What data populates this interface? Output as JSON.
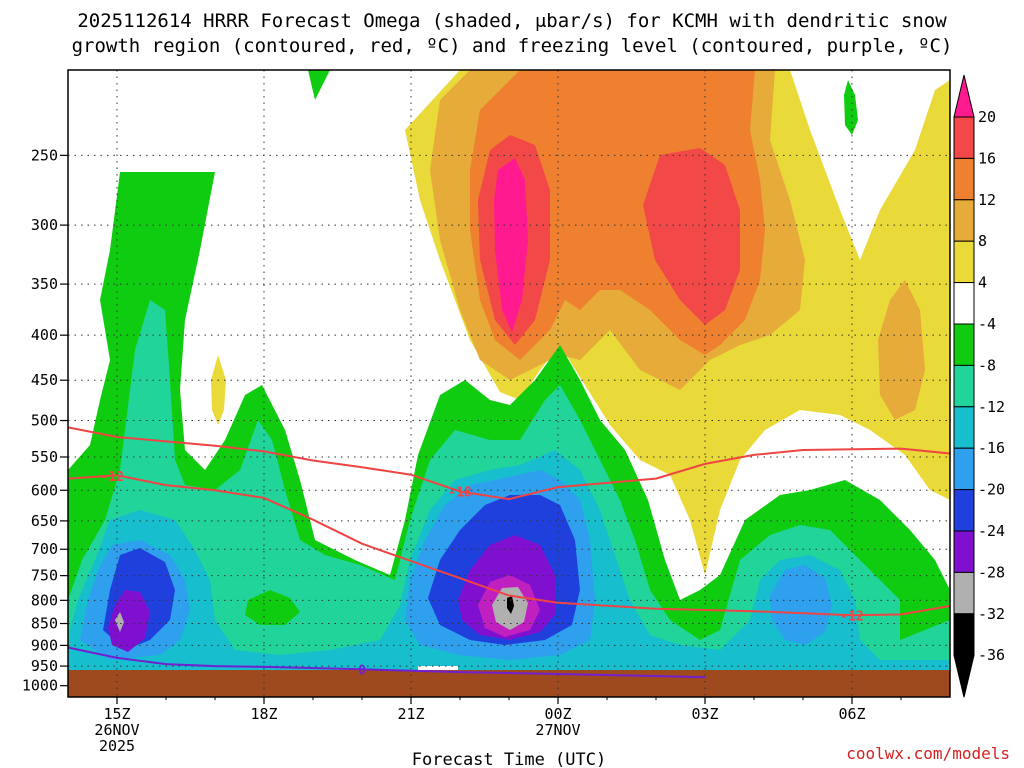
{
  "title_line1": "2025112614 HRRR Forecast Omega (shaded, μbar/s) for KCMH with dendritic snow",
  "title_line2": "growth region (contoured, red, ºC) and freezing level (contoured, purple, ºC)",
  "credit": "coolwx.com/models",
  "chart_data": {
    "type": "time-height cross-section",
    "xlabel": "Forecast Time (UTC)",
    "ylabel": "",
    "x_ticks": [
      {
        "hour": 15,
        "lines": [
          "15Z",
          "26NOV",
          "2025"
        ]
      },
      {
        "hour": 18,
        "lines": [
          "18Z"
        ]
      },
      {
        "hour": 21,
        "lines": [
          "21Z"
        ]
      },
      {
        "hour": 24,
        "lines": [
          "00Z",
          "27NOV"
        ]
      },
      {
        "hour": 27,
        "lines": [
          "03Z"
        ]
      },
      {
        "hour": 30,
        "lines": [
          "06Z"
        ]
      }
    ],
    "x_range_hours": [
      14,
      32
    ],
    "y_ticks": [
      250,
      300,
      350,
      400,
      450,
      500,
      550,
      600,
      650,
      700,
      750,
      800,
      850,
      900,
      950,
      1000
    ],
    "y_range_mb": [
      200,
      1000
    ],
    "colorbar": {
      "labels": [
        20,
        16,
        12,
        8,
        4,
        -4,
        -8,
        -12,
        -16,
        -20,
        -24,
        -28,
        -32,
        -36
      ],
      "colors": [
        "#ff1a90",
        "#f24848",
        "#ee8030",
        "#e6ab38",
        "#e9d939",
        "#ffffff",
        "#10cc10",
        "#20d49a",
        "#17bece",
        "#2ea0ee",
        "#2040dd",
        "#8010d0",
        "#b0b0b0",
        "#000000"
      ]
    },
    "contours": [
      {
        "name": "-12",
        "color": "#ee4444",
        "label": "-12",
        "points": [
          [
            14,
            582
          ],
          [
            15,
            577
          ],
          [
            16,
            592
          ],
          [
            17,
            600
          ],
          [
            18,
            612
          ],
          [
            19,
            648
          ],
          [
            20,
            690
          ],
          [
            21,
            722
          ],
          [
            22,
            755
          ],
          [
            23,
            790
          ],
          [
            24,
            805
          ],
          [
            26,
            818
          ],
          [
            28,
            823
          ],
          [
            30,
            832
          ],
          [
            31,
            830
          ],
          [
            32,
            812
          ]
        ]
      },
      {
        "name": "-18",
        "color": "#ee4444",
        "label": "-18",
        "points": [
          [
            14,
            509
          ],
          [
            15,
            522
          ],
          [
            16,
            528
          ],
          [
            17,
            534
          ],
          [
            18,
            542
          ],
          [
            19,
            555
          ],
          [
            20,
            565
          ],
          [
            21,
            576
          ],
          [
            22,
            602
          ],
          [
            23,
            614
          ],
          [
            24,
            595
          ],
          [
            26,
            582
          ],
          [
            27,
            560
          ],
          [
            28,
            547
          ],
          [
            29,
            540
          ],
          [
            31,
            538
          ],
          [
            32,
            545
          ]
        ]
      },
      {
        "name": "0",
        "color": "#7020d0",
        "label": "0",
        "points": [
          [
            14,
            905
          ],
          [
            15,
            930
          ],
          [
            16,
            945
          ],
          [
            17,
            950
          ],
          [
            18,
            952
          ],
          [
            20,
            958
          ],
          [
            22,
            965
          ],
          [
            24,
            970
          ],
          [
            26,
            975
          ],
          [
            27,
            978
          ]
        ]
      }
    ]
  }
}
